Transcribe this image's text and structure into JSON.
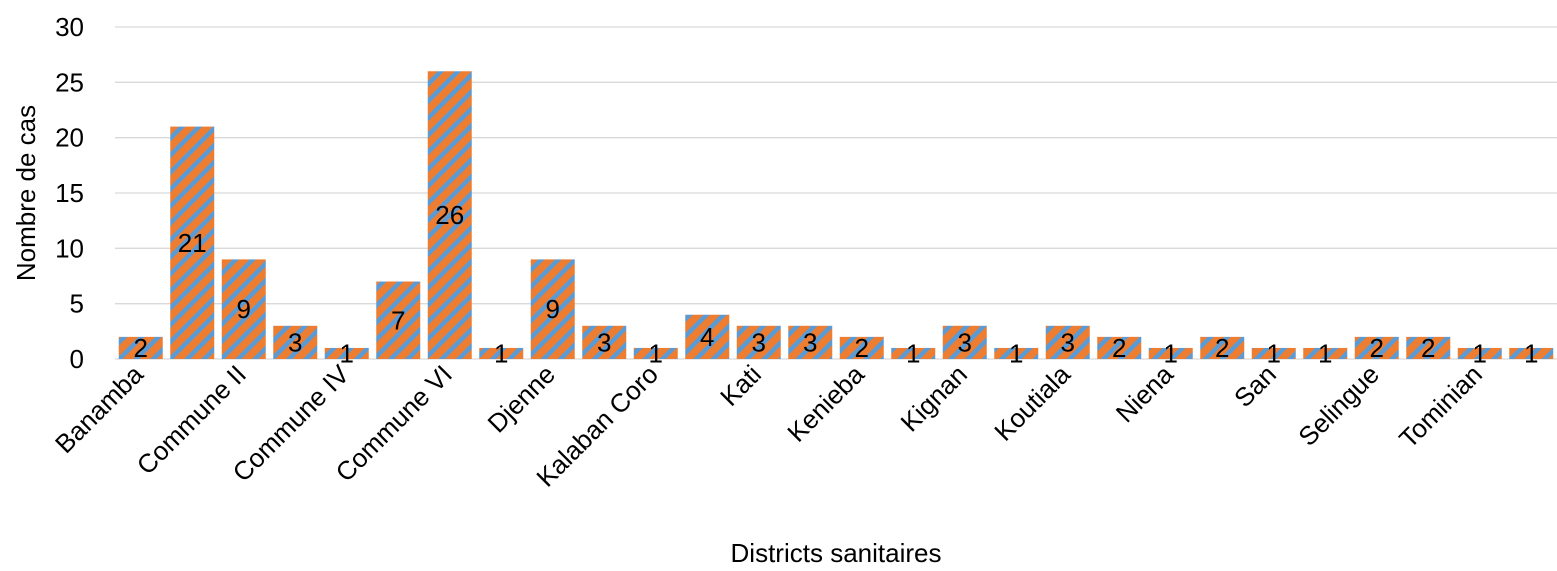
{
  "chart_data": {
    "type": "bar",
    "title": "",
    "xlabel": "Districts sanitaires",
    "ylabel": "Nombre de cas",
    "ylim": [
      0,
      30
    ],
    "yticks": [
      0,
      5,
      10,
      15,
      20,
      25,
      30
    ],
    "grid": true,
    "legend": "none",
    "categories": [
      "Banamba",
      "",
      "Commune II",
      "",
      "Commune IV",
      "",
      "Commune VI",
      "",
      "Djenne",
      "",
      "Kalaban Coro",
      "",
      "Kati",
      "",
      "Kenieba",
      "",
      "Kignan",
      "",
      "Koutiala",
      "",
      "Niena",
      "",
      "San",
      "",
      "Selingue",
      "",
      "Tominian",
      ""
    ],
    "values": [
      2,
      21,
      9,
      3,
      1,
      7,
      26,
      1,
      9,
      3,
      1,
      4,
      3,
      3,
      2,
      1,
      3,
      1,
      3,
      2,
      1,
      2,
      1,
      1,
      2,
      2,
      1,
      1
    ],
    "colors": {
      "bar_fill": "#ed7d31",
      "bar_stripe": "#5b9bd5",
      "grid": "#d9d9d9",
      "text": "#000000"
    }
  }
}
